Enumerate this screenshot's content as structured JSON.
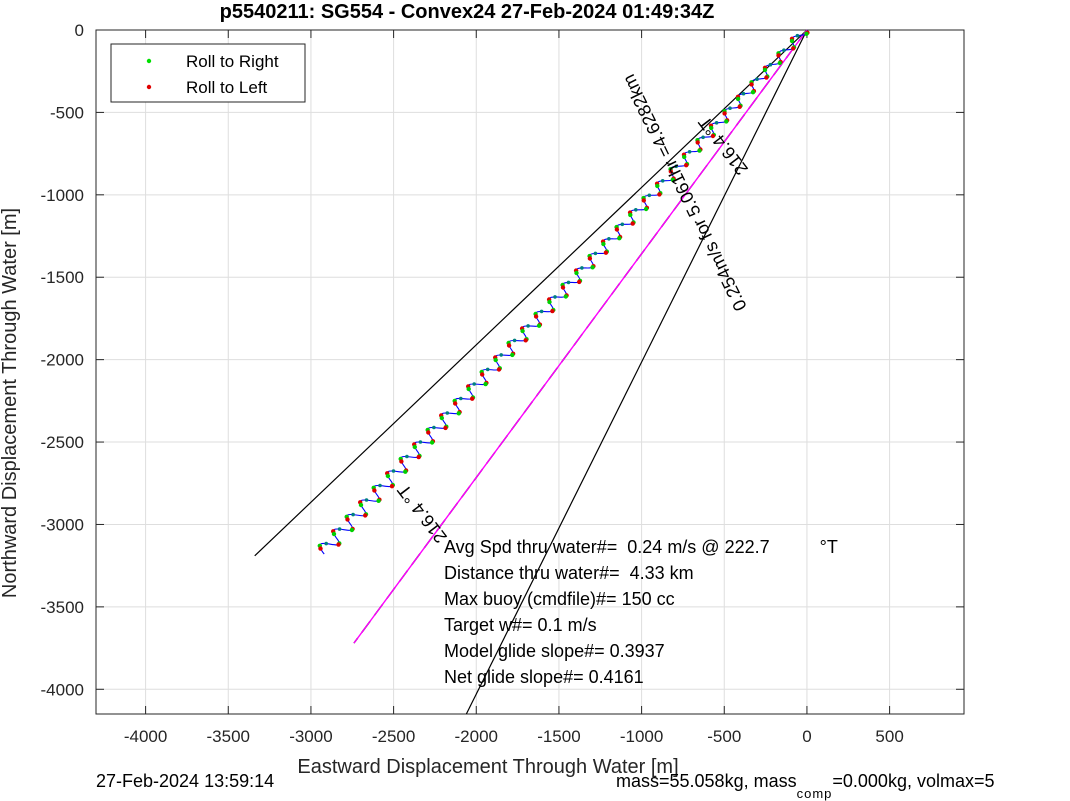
{
  "chart_data": {
    "type": "line",
    "title": "p5540211: SG554 - Convex24 27-Feb-2024 01:49:34Z",
    "xlabel": "Eastward Displacement Through Water [m]",
    "ylabel": "Northward Displacement Through Water [m]",
    "xlim": [
      -4300,
      950
    ],
    "ylim": [
      -4150,
      0
    ],
    "xticks": [
      -4000,
      -3500,
      -3000,
      -2500,
      -2000,
      -1500,
      -1000,
      -500,
      0,
      500
    ],
    "yticks": [
      0,
      -500,
      -1000,
      -1500,
      -2000,
      -2500,
      -3000,
      -3500,
      -4000
    ],
    "grid": true,
    "legend_position": "top-left",
    "legend": [
      {
        "label": "Roll to Right",
        "color": "#00e000"
      },
      {
        "label": "Roll to Left",
        "color": "#e00000"
      }
    ],
    "path_start": [
      0,
      0
    ],
    "path_end": [
      -2920,
      -3180
    ],
    "cone_lines": [
      {
        "from": [
          0,
          0
        ],
        "to": [
          -3340,
          -3190
        ]
      },
      {
        "from": [
          0,
          0
        ],
        "to": [
          -2060,
          -4150
        ]
      }
    ],
    "heading_line": {
      "from": [
        0,
        0
      ],
      "to": [
        -2740,
        -3720
      ]
    },
    "annotations": {
      "heading_upper": "216.4 °T",
      "speed_line": "0.254m/s for 5.061hr =4.6282km",
      "heading_lower": "216.4 °T"
    },
    "stats": [
      "Avg Spd thru water#=  0.24 m/s @ 222.7          °T",
      "Distance thru water#=  4.33 km",
      "Max buoy (cmdfile)#= 150 cc",
      "Target w#= 0.1 m/s",
      "Model glide slope#= 0.3937",
      "Net glide slope#= 0.4161"
    ]
  },
  "footer": {
    "timestamp": "27-Feb-2024 13:59:14",
    "mass_text": "mass=55.058kg, mass",
    "mass_sub": "comp",
    "mass_rest": "=0.000kg, volmax=5"
  }
}
